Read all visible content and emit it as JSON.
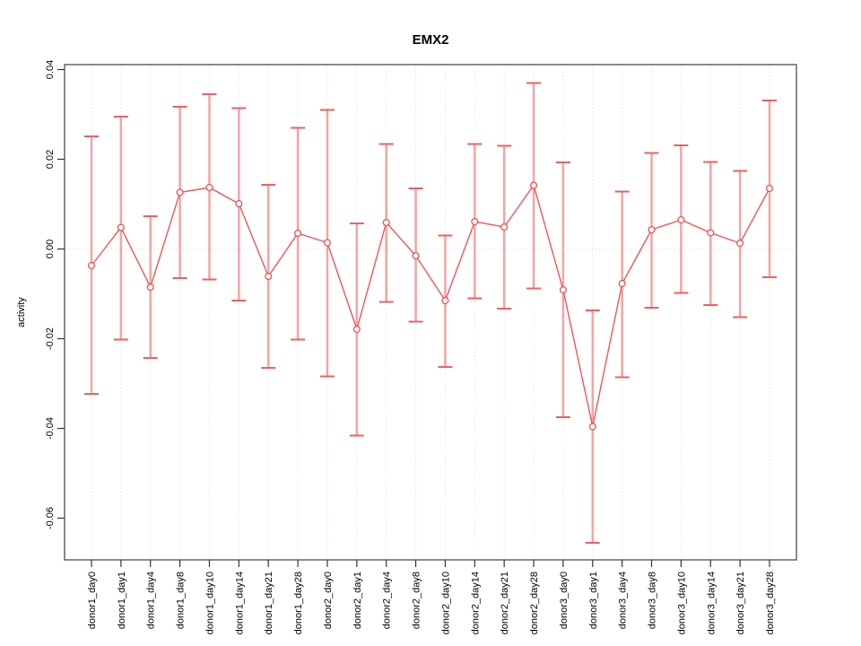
{
  "chart_data": {
    "type": "line",
    "title": "EMX2",
    "xlabel": "",
    "ylabel": "activity",
    "legend_position": "none",
    "grid": {
      "vertical": "dotted",
      "horizontal_zero_line": "dotted"
    },
    "yticks": [
      "0.04",
      "0.02",
      "0.00",
      "-0.02",
      "-0.04",
      "-0.06"
    ],
    "ytick_values": [
      0.04,
      0.02,
      0.0,
      -0.02,
      -0.04,
      -0.06
    ],
    "ylim": [
      -0.0693,
      0.0411
    ],
    "categories": [
      "donor1_day0",
      "donor1_day1",
      "donor1_day4",
      "donor1_day8",
      "donor1_day10",
      "donor1_day14",
      "donor1_day21",
      "donor1_day28",
      "donor2_day0",
      "donor2_day1",
      "donor2_day4",
      "donor2_day8",
      "donor2_day10",
      "donor2_day14",
      "donor2_day21",
      "donor2_day28",
      "donor3_day0",
      "donor3_day1",
      "donor3_day4",
      "donor3_day8",
      "donor3_day10",
      "donor3_day14",
      "donor3_day21",
      "donor3_day28"
    ],
    "series": [
      {
        "name": "activity",
        "marker": "open-circle",
        "values": [
          -0.0037,
          0.0048,
          -0.0085,
          0.0126,
          0.0137,
          0.0101,
          -0.0061,
          0.0035,
          0.0014,
          -0.0179,
          0.0059,
          -0.0015,
          -0.0115,
          0.0061,
          0.0049,
          0.0142,
          -0.0091,
          -0.0396,
          -0.0077,
          0.0043,
          0.0065,
          0.0036,
          0.0013,
          0.0135
        ],
        "upper": [
          0.0251,
          0.0295,
          0.0073,
          0.0317,
          0.0345,
          0.0314,
          0.0143,
          0.027,
          0.031,
          0.0057,
          0.0234,
          0.0135,
          0.003,
          0.0234,
          0.023,
          0.037,
          0.0193,
          -0.0137,
          0.0128,
          0.0214,
          0.0231,
          0.0194,
          0.0174,
          0.0331
        ],
        "lower": [
          -0.0323,
          -0.0202,
          -0.0243,
          -0.0065,
          -0.0068,
          -0.0115,
          -0.0265,
          -0.0202,
          -0.0284,
          -0.0416,
          -0.0118,
          -0.0162,
          -0.0263,
          -0.011,
          -0.0133,
          -0.0088,
          -0.0375,
          -0.0655,
          -0.0286,
          -0.0131,
          -0.0098,
          -0.0125,
          -0.0152,
          -0.0063
        ]
      }
    ]
  },
  "style": {
    "line_color": "#f25555",
    "marker_color": "#ee4f4f",
    "errorbar_stem_color": "#f5a3a3",
    "errorbar_cap_color": "#ee6060",
    "grid_color": "#dedede",
    "frame_color": "#5a5a5a",
    "tick_color": "#333333",
    "text_color": "#000000",
    "background": "#ffffff"
  }
}
